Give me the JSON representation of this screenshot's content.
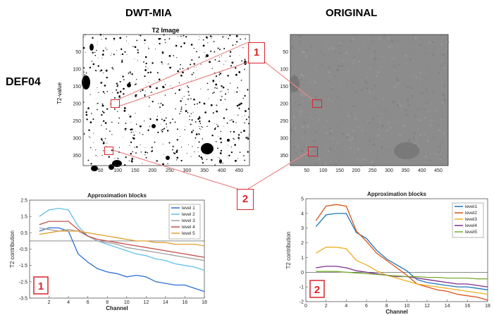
{
  "headings": {
    "left": "DWT-MIA",
    "right": "ORIGINAL",
    "sample": "DEF04"
  },
  "t2_image": {
    "title": "T2 Image",
    "ylabel": "T2-value",
    "x_ticks": [
      "50",
      "100",
      "150",
      "200",
      "250",
      "300",
      "350",
      "400",
      "450"
    ],
    "y_ticks": [
      "50",
      "100",
      "150",
      "200",
      "250",
      "300",
      "350"
    ]
  },
  "original_image": {
    "x_ticks": [
      "50",
      "100",
      "150",
      "200",
      "250",
      "300",
      "350",
      "400",
      "450"
    ],
    "y_ticks": [
      "50",
      "100",
      "150",
      "200",
      "250",
      "300",
      "350"
    ]
  },
  "callouts": {
    "first": "1",
    "second": "2"
  },
  "colors": {
    "callout_red": "#d9242b"
  },
  "chart_data": [
    {
      "type": "line",
      "title": "Approximation blocks",
      "xlabel": "Channel",
      "ylabel": "T2 contribution",
      "xlim": [
        0,
        18
      ],
      "ylim": [
        -3.5,
        2.5
      ],
      "x_ticks": [
        2,
        4,
        6,
        8,
        10,
        12,
        14,
        16,
        18
      ],
      "y_ticks": [
        2.5,
        1.5,
        0.5,
        -0.5,
        -1.5,
        -2.5,
        -3.5
      ],
      "y_tick_labels": [
        "2.5",
        "1.5",
        "0.5",
        "-0.5",
        "-1.5",
        "-2.5",
        "-3.5"
      ],
      "badge": "1",
      "x": [
        1,
        2,
        3,
        4,
        5,
        6,
        7,
        8,
        9,
        10,
        11,
        12,
        13,
        14,
        15,
        16,
        17,
        18
      ],
      "series": [
        {
          "name": "level 1",
          "color": "#2a6fd1",
          "values": [
            0.6,
            0.8,
            0.8,
            0.6,
            -0.8,
            -1.3,
            -1.7,
            -1.9,
            -2.0,
            -2.2,
            -2.1,
            -2.2,
            -2.5,
            -2.6,
            -2.7,
            -2.7,
            -2.9,
            -3.1
          ]
        },
        {
          "name": "level 2",
          "color": "#63c0e6",
          "values": [
            1.5,
            1.9,
            2.0,
            1.9,
            0.9,
            0.3,
            0.0,
            -0.2,
            -0.4,
            -0.6,
            -0.8,
            -0.9,
            -1.1,
            -1.2,
            -1.4,
            -1.5,
            -1.6,
            -1.8
          ]
        },
        {
          "name": "level 3",
          "color": "#a0a0a0",
          "values": [
            0.8,
            0.7,
            0.6,
            0.7,
            0.6,
            0.3,
            0.0,
            -0.1,
            -0.2,
            -0.4,
            -0.5,
            -0.6,
            -0.7,
            -0.8,
            -0.9,
            -1.0,
            -1.1,
            -1.2
          ]
        },
        {
          "name": "level 4",
          "color": "#c2504a",
          "values": [
            1.0,
            1.2,
            1.2,
            1.2,
            0.7,
            0.3,
            0.1,
            0.0,
            -0.1,
            -0.2,
            -0.3,
            -0.4,
            -0.5,
            -0.6,
            -0.7,
            -0.8,
            -0.9,
            -1.0
          ]
        },
        {
          "name": "level 5",
          "color": "#e0a030",
          "values": [
            0.4,
            0.5,
            0.6,
            0.6,
            0.6,
            0.5,
            0.4,
            0.3,
            0.2,
            0.1,
            0.0,
            0.0,
            -0.1,
            -0.1,
            -0.2,
            -0.2,
            -0.2,
            -0.3
          ]
        }
      ]
    },
    {
      "type": "line",
      "title": "Approximation blocks",
      "xlabel": "Channel",
      "ylabel": "T2 contribution",
      "xlim": [
        0,
        18
      ],
      "ylim": [
        -2,
        5
      ],
      "x_ticks": [
        0,
        2,
        4,
        6,
        8,
        10,
        12,
        14,
        16,
        18
      ],
      "y_ticks": [
        5,
        4,
        3,
        2,
        1,
        0,
        -1,
        -2
      ],
      "y_tick_labels": [
        "5",
        "4",
        "3",
        "2",
        "1",
        "0",
        "-1",
        "-2"
      ],
      "badge": "2",
      "x": [
        1,
        2,
        3,
        4,
        5,
        6,
        7,
        8,
        9,
        10,
        11,
        12,
        13,
        14,
        15,
        16,
        17,
        18
      ],
      "series": [
        {
          "name": "level1",
          "color": "#1f77b4",
          "values": [
            3.1,
            3.9,
            4.0,
            4.0,
            2.7,
            2.3,
            1.5,
            0.9,
            0.5,
            0.1,
            -0.5,
            -0.7,
            -0.8,
            -0.9,
            -1.0,
            -1.0,
            -1.1,
            -1.2
          ]
        },
        {
          "name": "level2",
          "color": "#d95319",
          "values": [
            3.5,
            4.5,
            4.6,
            4.5,
            2.8,
            2.1,
            1.3,
            0.8,
            0.3,
            -0.2,
            -0.8,
            -1.0,
            -1.2,
            -1.3,
            -1.5,
            -1.6,
            -1.7,
            -1.9
          ]
        },
        {
          "name": "level3",
          "color": "#edb120",
          "values": [
            1.3,
            1.7,
            1.7,
            1.6,
            0.8,
            0.5,
            0.1,
            -0.2,
            -0.4,
            -0.6,
            -0.8,
            -0.9,
            -1.0,
            -1.1,
            -1.2,
            -1.3,
            -1.4,
            -1.5
          ]
        },
        {
          "name": "level4",
          "color": "#7e2f8e",
          "values": [
            0.3,
            0.4,
            0.4,
            0.3,
            0.1,
            0.0,
            -0.1,
            -0.2,
            -0.3,
            -0.3,
            -0.4,
            -0.5,
            -0.6,
            -0.7,
            -0.8,
            -0.8,
            -0.9,
            -1.0
          ]
        },
        {
          "name": "level5",
          "color": "#77ac30",
          "values": [
            0.05,
            0.05,
            0.05,
            0.0,
            -0.05,
            -0.1,
            -0.15,
            -0.2,
            -0.25,
            -0.3,
            -0.3,
            -0.35,
            -0.35,
            -0.4,
            -0.4,
            -0.4,
            -0.45,
            -0.45
          ]
        }
      ]
    }
  ]
}
